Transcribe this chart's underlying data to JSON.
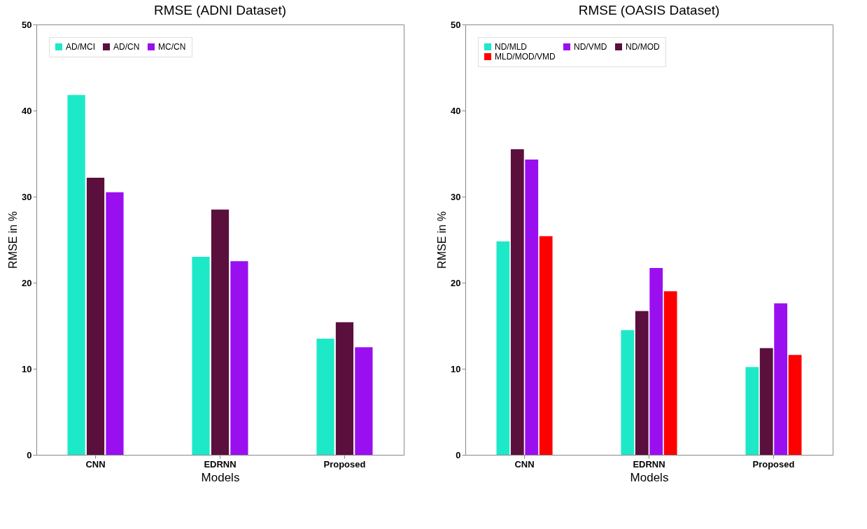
{
  "chart_data": [
    {
      "type": "bar",
      "title": "RMSE (ADNI Dataset)",
      "xlabel": "Models",
      "ylabel": "RMSE in %",
      "categories": [
        "CNN",
        "EDRNN",
        "Proposed"
      ],
      "series": [
        {
          "name": "AD/MCI",
          "color": "#1de9c8",
          "values": [
            41.8,
            23.0,
            13.5
          ]
        },
        {
          "name": "AD/CN",
          "color": "#5a0f3c",
          "values": [
            32.2,
            28.5,
            15.4
          ]
        },
        {
          "name": "MC/CN",
          "color": "#9a0ff0",
          "values": [
            30.5,
            22.5,
            12.5
          ]
        }
      ],
      "ylim": [
        0,
        50
      ],
      "yticks": [
        0,
        10,
        20,
        30,
        40,
        50
      ],
      "grid": false,
      "legend": "top left"
    },
    {
      "type": "bar",
      "title": "RMSE (OASIS Dataset)",
      "xlabel": "Models",
      "ylabel": "RMSE in %",
      "categories": [
        "CNN",
        "EDRNN",
        "Proposed"
      ],
      "series": [
        {
          "name": "ND/MLD",
          "color": "#1de9c8",
          "values": [
            24.8,
            14.5,
            10.2
          ]
        },
        {
          "name": "ND/MOD",
          "color": "#5a0f3c",
          "values": [
            35.5,
            16.7,
            12.4
          ]
        },
        {
          "name": "ND/VMD",
          "color": "#9a0ff0",
          "values": [
            34.3,
            21.7,
            17.6
          ]
        },
        {
          "name": "MLD/MOD/VMD",
          "color": "#ff0000",
          "values": [
            25.4,
            19.0,
            11.6
          ]
        }
      ],
      "ylim": [
        0,
        50
      ],
      "yticks": [
        0,
        10,
        20,
        30,
        40,
        50
      ],
      "grid": false,
      "legend": "top left"
    }
  ]
}
